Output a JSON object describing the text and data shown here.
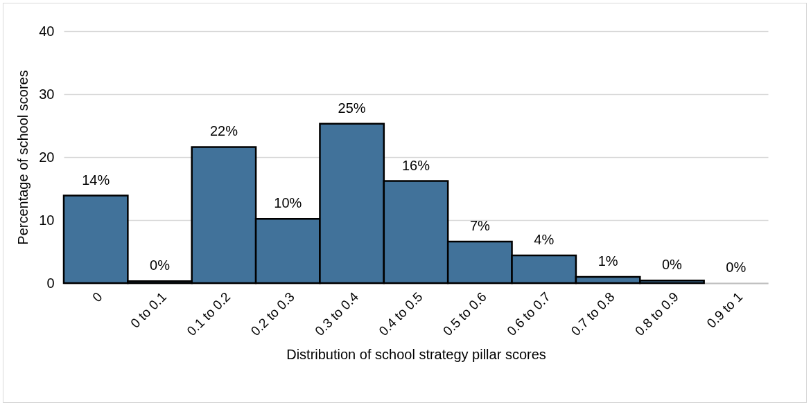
{
  "chart_data": {
    "type": "bar",
    "xlabel": "Distribution of school strategy pillar scores",
    "ylabel": "Percentage of school scores",
    "categories": [
      "0",
      "0 to 0.1",
      "0.1 to 0.2",
      "0.2 to 0.3",
      "0.3 to 0.4",
      "0.4 to 0.5",
      "0.5 to 0.6",
      "0.6 to 0.7",
      "0.7 to 0.8",
      "0.8 to 0.9",
      "0.9 to 1"
    ],
    "values": [
      13.9,
      0.3,
      21.6,
      10.2,
      25.3,
      16.2,
      6.6,
      4.4,
      1.0,
      0.4,
      0
    ],
    "value_labels": [
      "14%",
      "0%",
      "22%",
      "10%",
      "25%",
      "16%",
      "7%",
      "4%",
      "1%",
      "0%",
      "0%"
    ],
    "color": "#41729a",
    "ylim": [
      0,
      40
    ],
    "yticks": [
      0,
      10,
      20,
      30,
      40
    ],
    "grid": "y"
  }
}
